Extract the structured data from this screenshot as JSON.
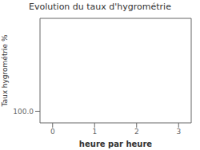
{
  "chart_data": {
    "type": "line",
    "title": "Evolution du taux d'hygrométrie",
    "xlabel": "heure par heure",
    "ylabel": "Taux hygrométrie %",
    "x": [],
    "values": [],
    "xlim": [
      -0.3,
      3.3
    ],
    "xticks": [
      0,
      1,
      2,
      3
    ],
    "ylim": [
      99.0,
      108
    ],
    "yticks": [
      {
        "value": 100.0,
        "label": "100.0"
      }
    ],
    "grid": true
  }
}
